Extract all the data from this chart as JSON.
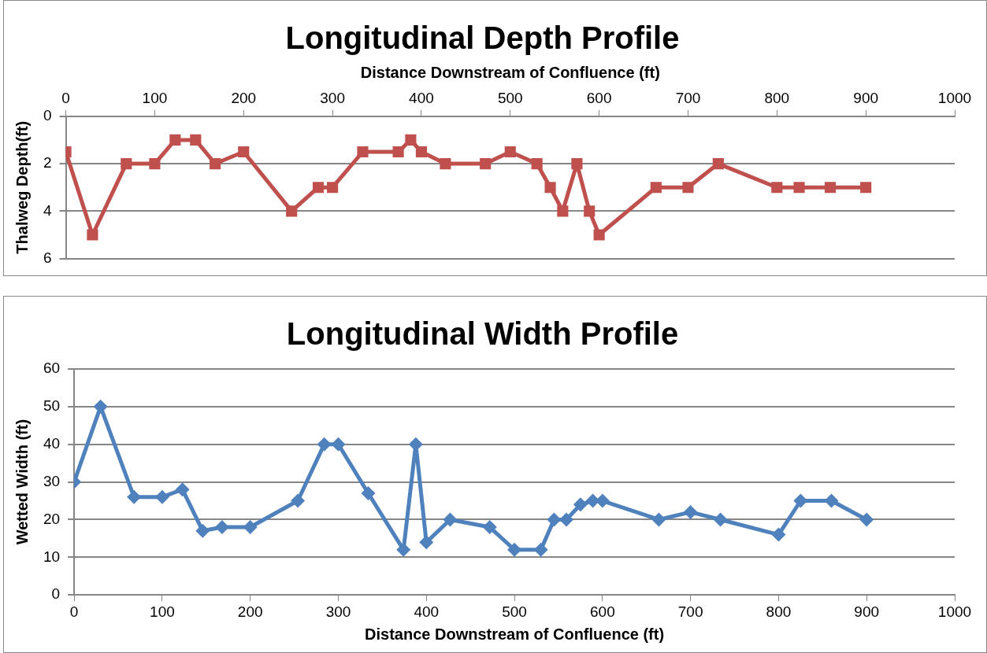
{
  "chart_data": [
    {
      "type": "line",
      "title": "Longitudinal Depth Profile",
      "xlabel": "Distance Downstream of Confluence (ft)",
      "ylabel": "Thalweg Depth(ft)",
      "x": [
        0,
        30,
        68,
        100,
        123,
        146,
        168,
        200,
        254,
        284,
        300,
        334,
        374,
        388,
        400,
        427,
        472,
        500,
        530,
        545,
        559,
        575,
        589,
        600,
        664,
        700,
        734,
        800,
        825,
        860,
        900
      ],
      "series": [
        {
          "color": "#c0504d",
          "values": [
            1.5,
            5,
            2,
            2,
            1,
            1,
            2,
            1.5,
            4,
            3,
            3,
            1.5,
            1.5,
            1,
            1.5,
            2,
            2,
            1.5,
            2,
            3,
            4,
            2,
            4,
            5,
            3,
            3,
            2,
            3,
            3,
            3,
            3
          ]
        }
      ],
      "xlim": [
        0,
        1000
      ],
      "xticks": [
        0,
        100,
        200,
        300,
        400,
        500,
        600,
        700,
        800,
        900,
        1000
      ],
      "ylim": [
        6,
        0
      ],
      "yticks": [
        0,
        2,
        4,
        6
      ],
      "grid": "y",
      "legend": false,
      "marker": "square",
      "line_style": "solid"
    },
    {
      "type": "line",
      "title": "Longitudinal Width Profile",
      "xlabel": "Distance Downstream of Confluence (ft)",
      "ylabel": "Wetted Width (ft)",
      "x": [
        0,
        30,
        68,
        100,
        123,
        146,
        168,
        200,
        254,
        284,
        300,
        334,
        374,
        388,
        400,
        427,
        472,
        500,
        530,
        545,
        559,
        575,
        589,
        600,
        664,
        700,
        734,
        800,
        825,
        860,
        900
      ],
      "series": [
        {
          "color": "#4f81bd",
          "values": [
            30,
            50,
            26,
            26,
            28,
            17,
            18,
            18,
            25,
            40,
            40,
            27,
            12,
            40,
            14,
            20,
            18,
            12,
            12,
            20,
            20,
            24,
            25,
            25,
            20,
            22,
            20,
            16,
            25,
            25,
            20
          ]
        }
      ],
      "xlim": [
        0,
        1000
      ],
      "xticks": [
        0,
        100,
        200,
        300,
        400,
        500,
        600,
        700,
        800,
        900,
        1000
      ],
      "ylim": [
        0,
        60
      ],
      "yticks": [
        0,
        10,
        20,
        30,
        40,
        50,
        60
      ],
      "grid": "y",
      "legend": false,
      "marker": "diamond",
      "line_style": "solid"
    }
  ]
}
